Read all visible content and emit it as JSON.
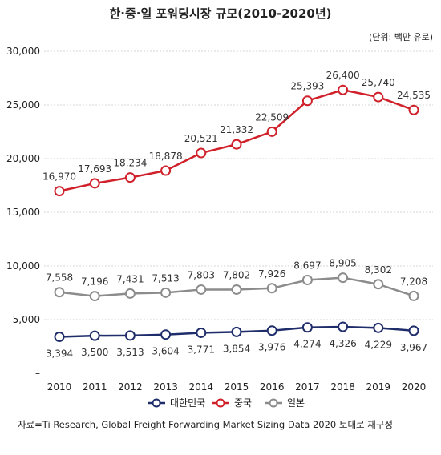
{
  "chart_data": {
    "type": "line",
    "title": "한·중·일 포워딩시장 규모(2010-2020년)",
    "unit_note": "(단위: 백만 유로)",
    "x": [
      "2010",
      "2011",
      "2012",
      "2013",
      "2014",
      "2015",
      "2016",
      "2017",
      "2018",
      "2019",
      "2020"
    ],
    "y_ticks": [
      "30,000",
      "25,000",
      "20,000",
      "15,000",
      "10,000",
      "5,000",
      "–"
    ],
    "ylim": [
      0,
      30000
    ],
    "y_break": [
      10000,
      15000
    ],
    "grid": true,
    "legend_position": "bottom",
    "series": [
      {
        "name": "대한민국",
        "color": "#1f2d6b",
        "values": [
          3394,
          3500,
          3513,
          3604,
          3771,
          3854,
          3976,
          4274,
          4326,
          4229,
          3967
        ],
        "labels": [
          "3,394",
          "3,500",
          "3,513",
          "3,604",
          "3,771",
          "3,854",
          "3,976",
          "4,274",
          "4,326",
          "4,229",
          "3,967"
        ],
        "label_position": "below"
      },
      {
        "name": "중국",
        "color": "#d0202a",
        "values": [
          16970,
          17693,
          18234,
          18878,
          20521,
          21332,
          22509,
          25393,
          26400,
          25740,
          24535
        ],
        "labels": [
          "16,970",
          "17,693",
          "18,234",
          "18,878",
          "20,521",
          "21,332",
          "22,509",
          "25,393",
          "26,400",
          "25,740",
          "24,535"
        ],
        "label_position": "above"
      },
      {
        "name": "일본",
        "color": "#8c8c8c",
        "values": [
          7558,
          7196,
          7431,
          7513,
          7803,
          7802,
          7926,
          8697,
          8905,
          8302,
          7208
        ],
        "labels": [
          "7,558",
          "7,196",
          "7,431",
          "7,513",
          "7,803",
          "7,802",
          "7,926",
          "8,697",
          "8,905",
          "8,302",
          "7,208"
        ],
        "label_position": "above"
      }
    ],
    "source": "자료=Ti Research, Global Freight Forwarding Market Sizing Data 2020 토대로 재구성"
  }
}
